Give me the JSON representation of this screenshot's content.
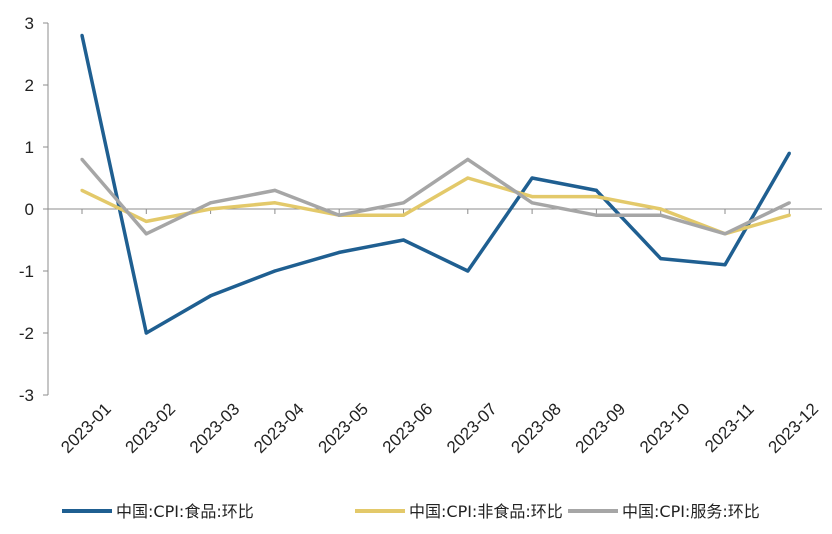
{
  "chart_data": {
    "type": "line",
    "title": "",
    "xlabel": "",
    "ylabel": "",
    "ylim": [
      -3,
      3
    ],
    "yticks": [
      -3,
      -2,
      -1,
      0,
      1,
      2,
      3
    ],
    "categories": [
      "2023-01",
      "2023-02",
      "2023-03",
      "2023-04",
      "2023-05",
      "2023-06",
      "2023-07",
      "2023-08",
      "2023-09",
      "2023-10",
      "2023-11",
      "2023-12"
    ],
    "grid": false,
    "legend_position": "bottom",
    "series": [
      {
        "name": "中国:CPI:食品:环比",
        "color": "#1f5f91",
        "values": [
          2.8,
          -2.0,
          -1.4,
          -1.0,
          -0.7,
          -0.5,
          -1.0,
          0.5,
          0.3,
          -0.8,
          -0.9,
          0.9
        ]
      },
      {
        "name": "中国:CPI:非食品:环比",
        "color": "#e3c96a",
        "values": [
          0.3,
          -0.2,
          0.0,
          0.1,
          -0.1,
          -0.1,
          0.5,
          0.2,
          0.2,
          0.0,
          -0.4,
          -0.1
        ]
      },
      {
        "name": "中国:CPI:服务:环比",
        "color": "#a6a6a6",
        "values": [
          0.8,
          -0.4,
          0.1,
          0.3,
          -0.1,
          0.1,
          0.8,
          0.1,
          -0.1,
          -0.1,
          -0.4,
          0.1
        ]
      }
    ]
  }
}
